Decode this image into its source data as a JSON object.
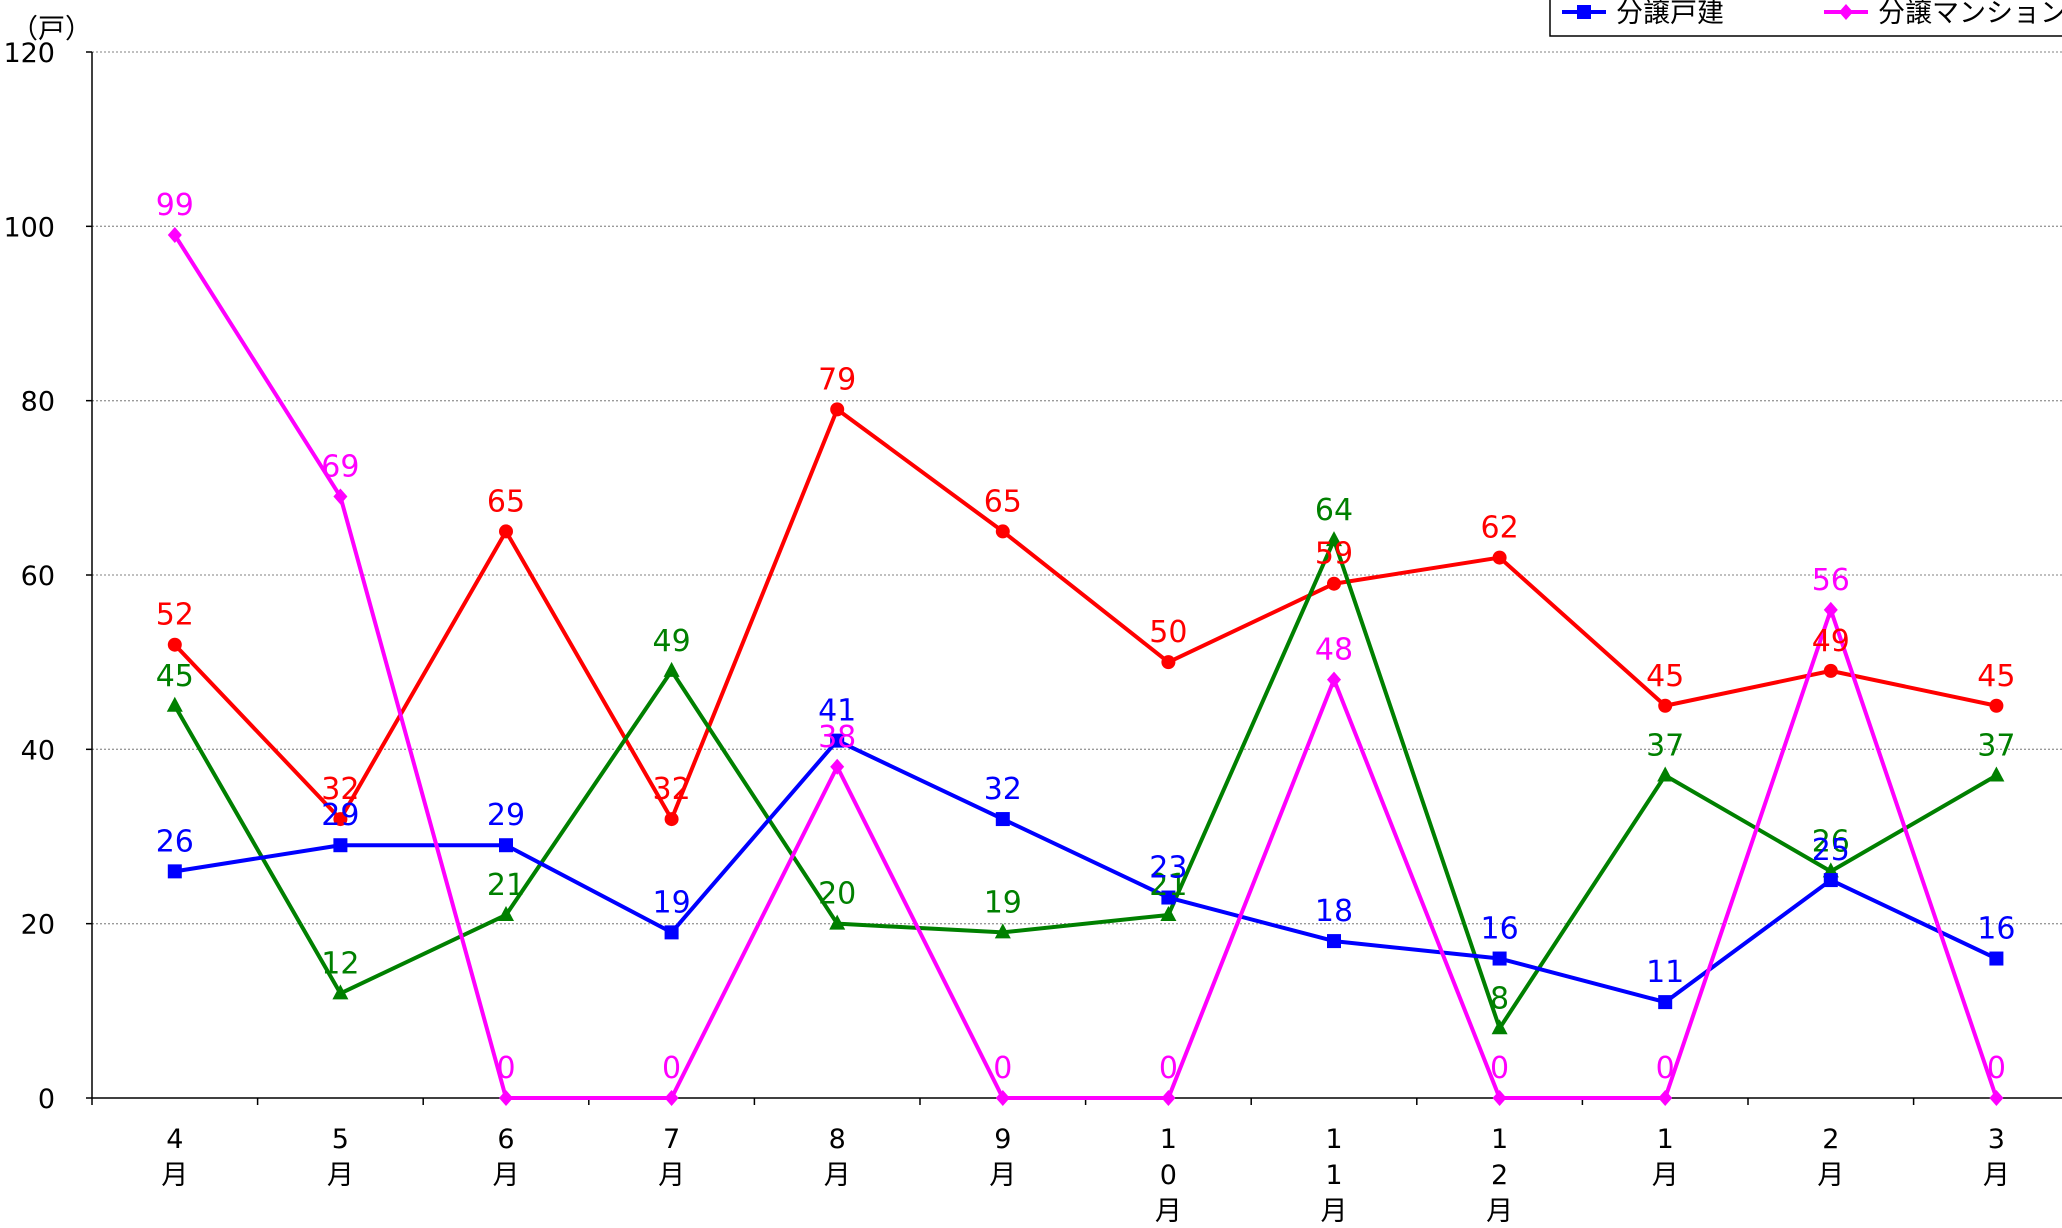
{
  "chart_data": {
    "type": "line",
    "unit_label": "（戸）",
    "ylim": [
      0,
      120
    ],
    "yticks": [
      "0",
      "20",
      "40",
      "60",
      "80",
      "100",
      "120"
    ],
    "grid": true,
    "legend_position": "top-right",
    "categories": [
      [
        "4",
        "月"
      ],
      [
        "5",
        "月"
      ],
      [
        "6",
        "月"
      ],
      [
        "7",
        "月"
      ],
      [
        "8",
        "月"
      ],
      [
        "9",
        "月"
      ],
      [
        "1",
        "0",
        "月"
      ],
      [
        "1",
        "1",
        "月"
      ],
      [
        "1",
        "2",
        "月"
      ],
      [
        "1",
        "月"
      ],
      [
        "2",
        "月"
      ],
      [
        "3",
        "月"
      ]
    ],
    "series": [
      {
        "name": "",
        "color": "#ff0000",
        "marker": "circle",
        "values": [
          52,
          32,
          65,
          32,
          79,
          65,
          50,
          59,
          62,
          45,
          49,
          45
        ]
      },
      {
        "name": "",
        "color": "#008000",
        "marker": "triangle",
        "values": [
          45,
          12,
          21,
          49,
          20,
          19,
          21,
          64,
          8,
          37,
          26,
          37
        ]
      },
      {
        "name": "分譲戸建",
        "color": "#0000ff",
        "marker": "square",
        "values": [
          26,
          29,
          29,
          19,
          41,
          32,
          23,
          18,
          16,
          11,
          25,
          16
        ]
      },
      {
        "name": "分譲マンション",
        "color": "#ff00ff",
        "marker": "diamond",
        "values": [
          99,
          69,
          0,
          0,
          38,
          0,
          0,
          48,
          0,
          0,
          56,
          0
        ]
      }
    ]
  }
}
